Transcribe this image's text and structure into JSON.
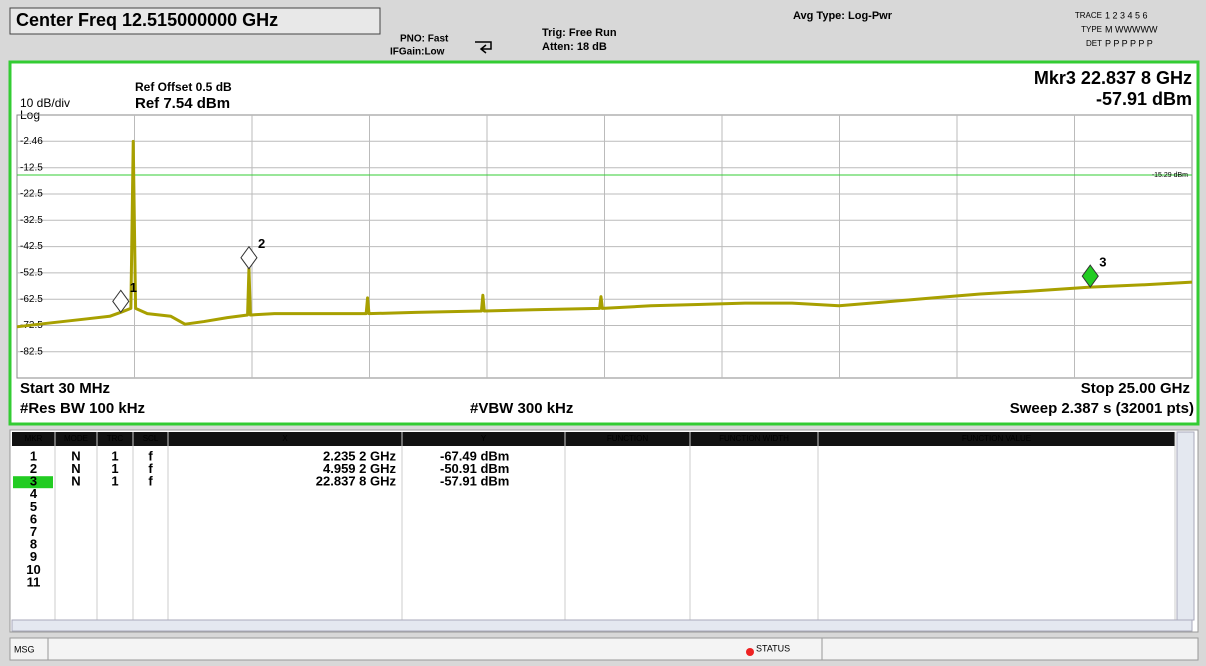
{
  "header": {
    "center_freq": "Center Freq 12.515000000 GHz",
    "pno": "PNO: Fast",
    "ifgain": "IFGain:Low",
    "trig": "Trig: Free Run",
    "atten": "Atten: 18 dB",
    "avg_type": "Avg Type: Log-Pwr",
    "trace_label": "TRACE",
    "trace_nums": "1 2 3 4 5 6",
    "type_label": "TYPE",
    "type_vals": "M WWWWW",
    "det_label": "DET",
    "det_vals": "P P P P P P"
  },
  "chart_data": {
    "type": "line",
    "ref_offset": "Ref Offset 0.5 dB",
    "scale": "10 dB/div",
    "ref_level": "Ref 7.54 dBm",
    "scale_type": "Log",
    "active_marker": "Mkr3 22.837 8 GHz",
    "active_marker_value": "-57.91 dBm",
    "start": "Start 30 MHz",
    "stop": "Stop 25.00 GHz",
    "rbw": "#Res BW 100 kHz",
    "vbw": "#VBW 300 kHz",
    "sweep": "Sweep  2.387 s (32001 pts)",
    "xlim": [
      0.03,
      25.0
    ],
    "ylim": [
      -92.46,
      7.54
    ],
    "yticks": [
      -2.46,
      -12.5,
      -22.5,
      -32.5,
      -42.5,
      -52.5,
      -62.5,
      -72.5,
      -82.5
    ],
    "grid": true,
    "color": "#a8a000",
    "display_line": {
      "value": -15.29,
      "label": "-15.29 dBm"
    },
    "x": [
      0.03,
      0.5,
      1.0,
      1.5,
      2.0,
      2.2352,
      2.45,
      2.5,
      2.55,
      2.8,
      3.3,
      3.6,
      4.0,
      4.5,
      4.93,
      4.9592,
      4.99,
      5.5,
      6.5,
      7.45,
      7.48,
      7.51,
      8.5,
      9.9,
      9.93,
      9.96,
      11.0,
      12.41,
      12.44,
      12.47,
      13.5,
      14.5,
      15.5,
      16.5,
      17.5,
      18.5,
      19.5,
      20.5,
      21.5,
      22.8378,
      24.0,
      25.0
    ],
    "values": [
      -73,
      -72,
      -71,
      -70,
      -69,
      -67.49,
      -66,
      -2.5,
      -66,
      -68,
      -69,
      -72,
      -71,
      -69.5,
      -68.5,
      -50.91,
      -68.5,
      -68,
      -68,
      -68,
      -62,
      -68,
      -67.5,
      -67,
      -61,
      -67,
      -66.5,
      -66,
      -61.5,
      -66,
      -65,
      -64.5,
      -64,
      -64,
      -65,
      -63.5,
      -62,
      -60.5,
      -59.5,
      -57.91,
      -57,
      -56
    ],
    "markers": [
      {
        "label": "1",
        "x": 2.2352,
        "y": -67.49
      },
      {
        "label": "2",
        "x": 4.9592,
        "y": -50.91
      },
      {
        "label": "3",
        "x": 22.8378,
        "y": -57.91
      }
    ]
  },
  "marker_table": {
    "columns": [
      "MKR",
      "MODE",
      "TRC",
      "SCL",
      "X",
      "Y",
      "FUNCTION",
      "FUNCTION WIDTH",
      "FUNCTION VALUE"
    ],
    "rows": [
      {
        "mkr": "1",
        "mode": "N",
        "trc": "1",
        "scl": "f",
        "x": "2.235 2 GHz",
        "y": "-67.49 dBm"
      },
      {
        "mkr": "2",
        "mode": "N",
        "trc": "1",
        "scl": "f",
        "x": "4.959 2 GHz",
        "y": "-50.91 dBm"
      },
      {
        "mkr": "3",
        "mode": "N",
        "trc": "1",
        "scl": "f",
        "x": "22.837 8 GHz",
        "y": "-57.91 dBm"
      },
      {
        "mkr": "4"
      },
      {
        "mkr": "5"
      },
      {
        "mkr": "6"
      },
      {
        "mkr": "7"
      },
      {
        "mkr": "8"
      },
      {
        "mkr": "9"
      },
      {
        "mkr": "10"
      },
      {
        "mkr": "11"
      }
    ]
  },
  "status_bar": {
    "msg": "MSG",
    "status": "STATUS"
  }
}
